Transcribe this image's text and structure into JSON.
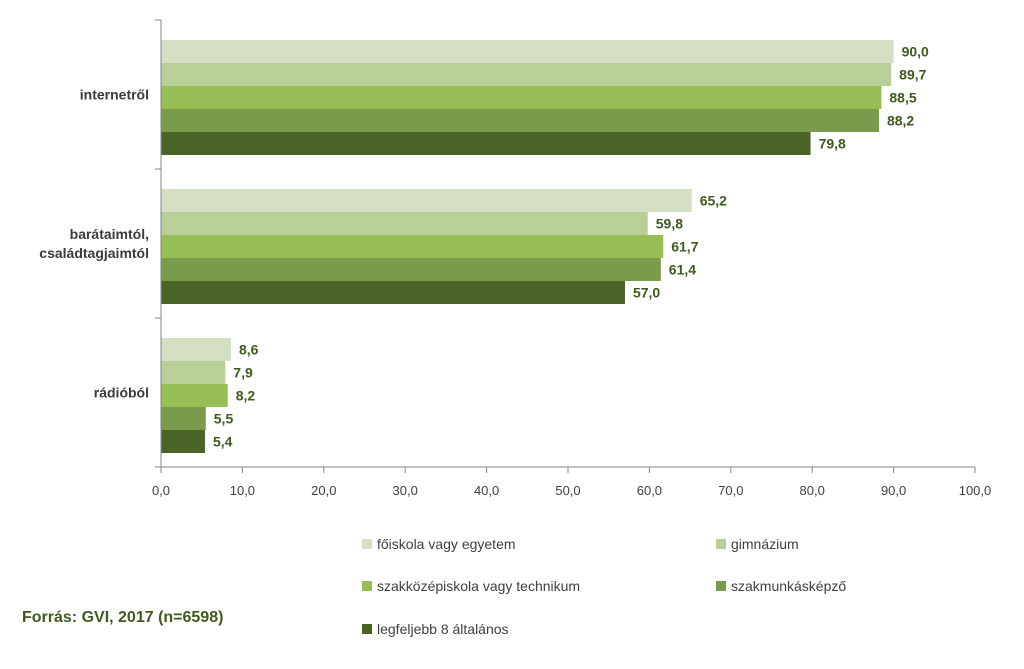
{
  "chart_data": {
    "type": "bar",
    "orientation": "horizontal",
    "categories": [
      "internetről",
      "barátaimtól, családtagjaimtól",
      "rádióból"
    ],
    "category_lines": [
      [
        "internetről"
      ],
      [
        "barátaimtól,",
        "családtagjaimtól"
      ],
      [
        "rádióból"
      ]
    ],
    "series": [
      {
        "name": "főiskola vagy egyetem",
        "color": "#d4dfc4",
        "values": [
          90.0,
          65.2,
          8.6
        ],
        "labels": [
          "90,0",
          "65,2",
          "8,6"
        ]
      },
      {
        "name": "gimnázium",
        "color": "#b9cf98",
        "values": [
          89.7,
          59.8,
          7.9
        ],
        "labels": [
          "89,7",
          "59,8",
          "7,9"
        ]
      },
      {
        "name": "szakközépiskola vagy technikum",
        "color": "#97bd55",
        "values": [
          88.5,
          61.7,
          8.2
        ],
        "labels": [
          "88,5",
          "61,7",
          "8,2"
        ]
      },
      {
        "name": "szakmunkásképző",
        "color": "#7a9c4a",
        "values": [
          88.2,
          61.4,
          5.5
        ],
        "labels": [
          "88,2",
          "61,4",
          "5,5"
        ]
      },
      {
        "name": "legfeljebb 8 általános",
        "color": "#4a6427",
        "values": [
          79.8,
          57.0,
          5.4
        ],
        "labels": [
          "79,8",
          "57,0",
          "5,4"
        ]
      }
    ],
    "xlim": [
      0,
      100
    ],
    "xticks": [
      0,
      10,
      20,
      30,
      40,
      50,
      60,
      70,
      80,
      90,
      100
    ],
    "xtick_labels": [
      "0,0",
      "10,0",
      "20,0",
      "30,0",
      "40,0",
      "50,0",
      "60,0",
      "70,0",
      "80,0",
      "90,0",
      "100,0"
    ],
    "grid": false,
    "legend_position": "bottom"
  },
  "source": "Forrás: GVI, 2017 (n=6598)"
}
